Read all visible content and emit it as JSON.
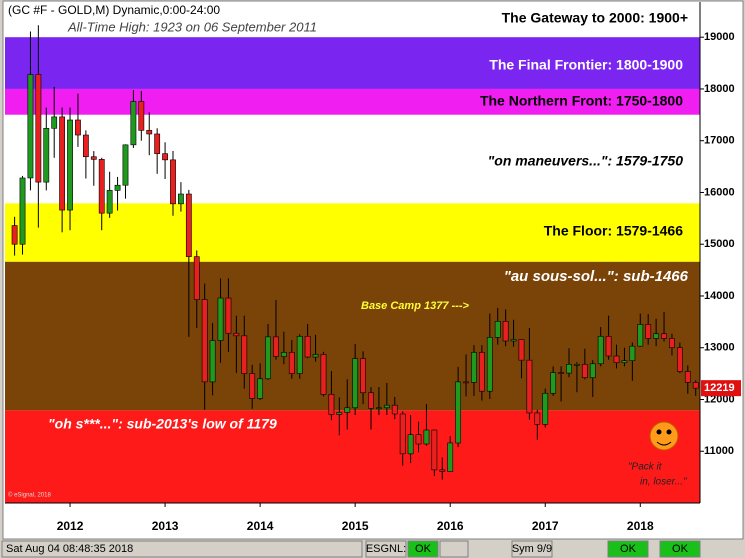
{
  "chart_data": {
    "type": "candlestick",
    "title": "(GC #F - GOLD,M) Dynamic,0:00-24:00",
    "subtitle": "All-Time High:  1923 on 06 September 2011",
    "credit": "© eSignal, 2018",
    "categories": [
      null,
      null,
      null,
      null,
      null,
      null,
      null,
      "2012",
      null,
      null,
      null,
      null,
      null,
      null,
      null,
      null,
      null,
      null,
      null,
      "2013",
      null,
      null,
      null,
      null,
      null,
      null,
      null,
      null,
      null,
      null,
      null,
      "2014",
      null,
      null,
      null,
      null,
      null,
      null,
      null,
      null,
      null,
      null,
      null,
      "2015",
      null,
      null,
      null,
      null,
      null,
      null,
      null,
      null,
      null,
      null,
      null,
      "2016",
      null,
      null,
      null,
      null,
      null,
      null,
      null,
      null,
      null,
      null,
      null,
      "2017",
      null,
      null,
      null,
      null,
      null,
      null,
      null,
      null,
      null,
      null,
      null,
      "2018",
      null,
      null,
      null,
      null,
      null,
      null,
      null
    ],
    "open": [
      15360,
      15000,
      16280,
      18280,
      16200,
      17240,
      17460,
      15660,
      17400,
      17110,
      16690,
      16640,
      15600,
      16040,
      16140,
      16920,
      17760,
      17200,
      17130,
      16750,
      16630,
      15780,
      15970,
      14760,
      13930,
      12340,
      13140,
      13960,
      13280,
      13230,
      12500,
      12020,
      12400,
      13210,
      12830,
      12910,
      12500,
      13220,
      12820,
      12870,
      12100,
      11710,
      11750,
      11840,
      12790,
      12130,
      11830,
      11840,
      11890,
      11720,
      10950,
      11320,
      11140,
      11410,
      10640,
      10610,
      11160,
      12340,
      12330,
      12910,
      12160,
      13200,
      13510,
      13130,
      13160,
      12760,
      11740,
      11520,
      12120,
      12520,
      12510,
      12680,
      12680,
      12420,
      12690,
      13220,
      12840,
      12710,
      12750,
      13030,
      13450,
      13180,
      13270,
      13180,
      13000,
      12540,
      12330
    ],
    "high": [
      15530,
      16320,
      19110,
      19230,
      17640,
      18040,
      17640,
      17640,
      17910,
      17200,
      16800,
      16670,
      16400,
      16300,
      16930,
      17980,
      17960,
      17550,
      17240,
      16970,
      16800,
      16200,
      16050,
      14880,
      14240,
      13480,
      14340,
      14340,
      13620,
      13620,
      12670,
      12700,
      13460,
      13920,
      13310,
      13150,
      13260,
      13460,
      13250,
      12920,
      12550,
      12040,
      12390,
      13070,
      12930,
      12240,
      12240,
      12320,
      12050,
      11770,
      11700,
      11570,
      11910,
      11420,
      10880,
      11290,
      12630,
      12870,
      13050,
      13050,
      13660,
      13770,
      13740,
      13540,
      13170,
      13380,
      11800,
      12210,
      12640,
      12640,
      12990,
      12720,
      12980,
      12760,
      13400,
      13620,
      13060,
      13000,
      13100,
      13660,
      13650,
      13560,
      13690,
      13270,
      13100,
      12660,
      12370
    ],
    "low": [
      14780,
      14800,
      16040,
      15320,
      16040,
      16670,
      15230,
      15270,
      16880,
      16270,
      16130,
      15270,
      15510,
      15650,
      15880,
      16860,
      17000,
      16720,
      16360,
      16260,
      15550,
      15630,
      13210,
      13380,
      11800,
      12080,
      12710,
      12920,
      12510,
      12210,
      11820,
      11990,
      12380,
      12770,
      12680,
      12400,
      12400,
      12800,
      12730,
      12060,
      11600,
      11310,
      11420,
      11700,
      11910,
      11420,
      11700,
      11700,
      11620,
      10720,
      10770,
      10980,
      11110,
      10520,
      10450,
      10620,
      11080,
      12060,
      12070,
      11980,
      12010,
      13060,
      13030,
      13020,
      12410,
      11610,
      11220,
      11460,
      12070,
      11960,
      12430,
      12140,
      12390,
      12050,
      12640,
      12770,
      12600,
      12640,
      12360,
      13020,
      13060,
      13030,
      13120,
      12850,
      12510,
      12110,
      12070
    ],
    "close": [
      15000,
      16280,
      18280,
      16200,
      17240,
      17460,
      15660,
      17400,
      17110,
      16690,
      16640,
      15600,
      16040,
      16140,
      16920,
      17760,
      17200,
      17130,
      16750,
      16630,
      15780,
      15970,
      14760,
      13930,
      12340,
      13140,
      13960,
      13280,
      13230,
      12500,
      12020,
      12400,
      13210,
      12830,
      12910,
      12500,
      13220,
      12820,
      12870,
      12100,
      11710,
      11750,
      11840,
      12790,
      12130,
      11830,
      11840,
      11890,
      11720,
      10950,
      11320,
      11140,
      11410,
      10640,
      10610,
      11160,
      12340,
      12330,
      12910,
      12160,
      13200,
      13510,
      13130,
      13160,
      12760,
      11740,
      11520,
      12120,
      12520,
      12510,
      12680,
      12680,
      12420,
      12690,
      13220,
      12840,
      12710,
      12750,
      13030,
      13450,
      13180,
      13270,
      13180,
      13000,
      12540,
      12330,
      12219
    ],
    "up_color": "#1f9a1f",
    "down_color": "#e82020",
    "ylim": [
      10000,
      19680
    ],
    "yticks": [
      11000,
      12000,
      13000,
      14000,
      15000,
      16000,
      17000,
      18000,
      19000
    ],
    "zones": [
      {
        "label": "The Gateway to 2000:  1900+",
        "from": 19000,
        "color": "#ffffff",
        "text_color": "#000000"
      },
      {
        "label": "The Final Frontier:  1800-1900",
        "from": 18000,
        "to": 19000,
        "color": "#7b26f0",
        "text_color": "#ffffff"
      },
      {
        "label": "The Northern Front:  1750-1800",
        "from": 17500,
        "to": 18000,
        "color": "#f01ef0",
        "text_color": "#000000"
      },
      {
        "label": "\"on maneuvers...\":  1579-1750",
        "from": 15790,
        "to": 17500,
        "color": "#ffffff",
        "text_color": "#000000"
      },
      {
        "label": "The Floor:  1579-1466",
        "from": 14660,
        "to": 15790,
        "color": "#ffff00",
        "text_color": "#000000"
      },
      {
        "label": "\"au sous-sol...\":  sub-1466",
        "from": 11790,
        "to": 14660,
        "color": "#7a4308",
        "text_color": "#ffffff"
      },
      {
        "label": "\"oh s***...\":  sub-2013's low of 1179",
        "to": 11790,
        "color": "#ff1a1a",
        "text_color": "#ffffff"
      }
    ],
    "annotations": [
      {
        "text": "Base Camp 1377 --->"
      },
      {
        "lines": [
          "\"Pack it",
          "in, loser...\""
        ]
      }
    ],
    "status_bar": {
      "datetime": "Sat Aug 04 08:48:35 2018",
      "items": [
        "ESGNL:",
        "OK",
        "Sym 9/9",
        "OK",
        "OK"
      ]
    }
  }
}
